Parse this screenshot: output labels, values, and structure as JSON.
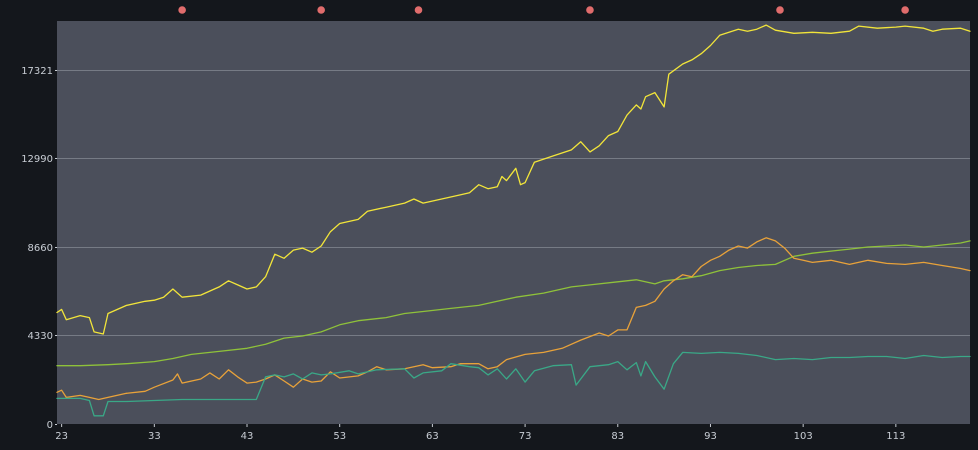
{
  "colors": {
    "background": "#14171c",
    "plot_background": "#4b4f5b",
    "marker": "#e06c6c",
    "tick": "#c8cdd4"
  },
  "chart_data": {
    "type": "line",
    "title": "",
    "xlabel": "",
    "ylabel": "",
    "xlim": [
      22.5,
      121
    ],
    "ylim": [
      0,
      19700
    ],
    "grid": "horizontal",
    "legend": "none",
    "x_ticks": [
      23,
      33,
      43,
      53,
      63,
      73,
      83,
      93,
      103,
      113
    ],
    "x_tick_labels": [
      "23",
      "33",
      "43",
      "53",
      "63",
      "73",
      "83",
      "93",
      "103",
      "113"
    ],
    "y_ticks": [
      0,
      4330,
      8660,
      12990,
      17321
    ],
    "y_tick_labels": [
      "0",
      "4330",
      "8660",
      "12990",
      "17321"
    ],
    "top_markers_x": [
      36,
      51,
      61.5,
      80,
      100.5,
      114
    ],
    "series": [
      {
        "color": "#f2e53a",
        "points": [
          [
            22.5,
            5450
          ],
          [
            23,
            5600
          ],
          [
            23.5,
            5100
          ],
          [
            25,
            5300
          ],
          [
            26,
            5200
          ],
          [
            26.5,
            4500
          ],
          [
            27.5,
            4400
          ],
          [
            28,
            5400
          ],
          [
            30,
            5800
          ],
          [
            32,
            6000
          ],
          [
            33,
            6050
          ],
          [
            34,
            6200
          ],
          [
            35,
            6600
          ],
          [
            36,
            6200
          ],
          [
            38,
            6300
          ],
          [
            40,
            6700
          ],
          [
            41,
            7000
          ],
          [
            42,
            6800
          ],
          [
            43,
            6600
          ],
          [
            44,
            6700
          ],
          [
            45,
            7200
          ],
          [
            46,
            8300
          ],
          [
            47,
            8100
          ],
          [
            48,
            8500
          ],
          [
            49,
            8600
          ],
          [
            50,
            8400
          ],
          [
            51,
            8700
          ],
          [
            52,
            9400
          ],
          [
            53,
            9800
          ],
          [
            55,
            10000
          ],
          [
            56,
            10400
          ],
          [
            58,
            10600
          ],
          [
            60,
            10800
          ],
          [
            61,
            11000
          ],
          [
            62,
            10800
          ],
          [
            64,
            11000
          ],
          [
            66,
            11200
          ],
          [
            67,
            11300
          ],
          [
            68,
            11700
          ],
          [
            69,
            11500
          ],
          [
            70,
            11600
          ],
          [
            70.5,
            12100
          ],
          [
            71,
            11900
          ],
          [
            72,
            12500
          ],
          [
            72.5,
            11700
          ],
          [
            73,
            11800
          ],
          [
            74,
            12800
          ],
          [
            76,
            13100
          ],
          [
            78,
            13400
          ],
          [
            79,
            13800
          ],
          [
            80,
            13300
          ],
          [
            81,
            13600
          ],
          [
            82,
            14100
          ],
          [
            83,
            14300
          ],
          [
            84,
            15100
          ],
          [
            85,
            15600
          ],
          [
            85.5,
            15400
          ],
          [
            86,
            16000
          ],
          [
            87,
            16200
          ],
          [
            88,
            15500
          ],
          [
            88.5,
            17100
          ],
          [
            90,
            17600
          ],
          [
            91,
            17800
          ],
          [
            92,
            18100
          ],
          [
            93,
            18500
          ],
          [
            94,
            19000
          ],
          [
            96,
            19300
          ],
          [
            97,
            19200
          ],
          [
            98,
            19300
          ],
          [
            99,
            19500
          ],
          [
            100,
            19250
          ],
          [
            102,
            19100
          ],
          [
            104,
            19150
          ],
          [
            106,
            19100
          ],
          [
            108,
            19200
          ],
          [
            109,
            19450
          ],
          [
            111,
            19350
          ],
          [
            113,
            19400
          ],
          [
            114,
            19450
          ],
          [
            116,
            19350
          ],
          [
            117,
            19200
          ],
          [
            118,
            19300
          ],
          [
            120,
            19350
          ],
          [
            121,
            19200
          ]
        ]
      },
      {
        "color": "#8fc23a",
        "points": [
          [
            22.5,
            2850
          ],
          [
            25,
            2850
          ],
          [
            28,
            2900
          ],
          [
            30,
            2950
          ],
          [
            33,
            3050
          ],
          [
            35,
            3200
          ],
          [
            37,
            3400
          ],
          [
            40,
            3550
          ],
          [
            43,
            3700
          ],
          [
            45,
            3900
          ],
          [
            47,
            4200
          ],
          [
            49,
            4300
          ],
          [
            51,
            4500
          ],
          [
            53,
            4850
          ],
          [
            55,
            5050
          ],
          [
            58,
            5200
          ],
          [
            60,
            5400
          ],
          [
            62,
            5500
          ],
          [
            65,
            5650
          ],
          [
            68,
            5800
          ],
          [
            70,
            6000
          ],
          [
            72,
            6200
          ],
          [
            75,
            6400
          ],
          [
            78,
            6700
          ],
          [
            80,
            6800
          ],
          [
            83,
            6950
          ],
          [
            85,
            7050
          ],
          [
            87,
            6850
          ],
          [
            88,
            7000
          ],
          [
            90,
            7100
          ],
          [
            92,
            7250
          ],
          [
            94,
            7500
          ],
          [
            96,
            7650
          ],
          [
            98,
            7750
          ],
          [
            100,
            7800
          ],
          [
            102,
            8200
          ],
          [
            104,
            8350
          ],
          [
            106,
            8450
          ],
          [
            108,
            8550
          ],
          [
            110,
            8650
          ],
          [
            112,
            8700
          ],
          [
            114,
            8750
          ],
          [
            116,
            8650
          ],
          [
            118,
            8750
          ],
          [
            120,
            8850
          ],
          [
            121,
            8950
          ]
        ]
      },
      {
        "color": "#e8a23a",
        "points": [
          [
            22.5,
            1550
          ],
          [
            23,
            1650
          ],
          [
            23.5,
            1300
          ],
          [
            25,
            1400
          ],
          [
            26,
            1300
          ],
          [
            27,
            1200
          ],
          [
            28,
            1300
          ],
          [
            30,
            1500
          ],
          [
            32,
            1600
          ],
          [
            33,
            1800
          ],
          [
            35,
            2150
          ],
          [
            35.5,
            2450
          ],
          [
            36,
            2000
          ],
          [
            38,
            2200
          ],
          [
            39,
            2500
          ],
          [
            40,
            2200
          ],
          [
            41,
            2650
          ],
          [
            42,
            2300
          ],
          [
            43,
            2000
          ],
          [
            44,
            2050
          ],
          [
            45,
            2200
          ],
          [
            46,
            2400
          ],
          [
            47,
            2100
          ],
          [
            48,
            1800
          ],
          [
            49,
            2200
          ],
          [
            50,
            2050
          ],
          [
            51,
            2100
          ],
          [
            52,
            2550
          ],
          [
            53,
            2250
          ],
          [
            55,
            2350
          ],
          [
            56,
            2550
          ],
          [
            57,
            2800
          ],
          [
            58,
            2650
          ],
          [
            60,
            2700
          ],
          [
            61,
            2800
          ],
          [
            62,
            2900
          ],
          [
            63,
            2750
          ],
          [
            65,
            2800
          ],
          [
            66,
            2950
          ],
          [
            68,
            2950
          ],
          [
            69,
            2700
          ],
          [
            70,
            2800
          ],
          [
            71,
            3150
          ],
          [
            73,
            3400
          ],
          [
            75,
            3500
          ],
          [
            77,
            3700
          ],
          [
            79,
            4100
          ],
          [
            81,
            4450
          ],
          [
            82,
            4300
          ],
          [
            83,
            4600
          ],
          [
            84,
            4600
          ],
          [
            85,
            5700
          ],
          [
            86,
            5800
          ],
          [
            87,
            6000
          ],
          [
            88,
            6600
          ],
          [
            89,
            7000
          ],
          [
            90,
            7300
          ],
          [
            91,
            7200
          ],
          [
            92,
            7700
          ],
          [
            93,
            8000
          ],
          [
            94,
            8200
          ],
          [
            95,
            8500
          ],
          [
            96,
            8700
          ],
          [
            97,
            8600
          ],
          [
            98,
            8900
          ],
          [
            99,
            9100
          ],
          [
            100,
            8950
          ],
          [
            101,
            8600
          ],
          [
            102,
            8100
          ],
          [
            103,
            8000
          ],
          [
            104,
            7900
          ],
          [
            106,
            8000
          ],
          [
            108,
            7800
          ],
          [
            110,
            8000
          ],
          [
            112,
            7850
          ],
          [
            114,
            7800
          ],
          [
            116,
            7900
          ],
          [
            118,
            7750
          ],
          [
            120,
            7600
          ],
          [
            121,
            7500
          ]
        ]
      },
      {
        "color": "#3aa887",
        "points": [
          [
            22.5,
            1250
          ],
          [
            25,
            1250
          ],
          [
            26,
            1150
          ],
          [
            26.5,
            400
          ],
          [
            27.5,
            400
          ],
          [
            28,
            1100
          ],
          [
            30,
            1100
          ],
          [
            33,
            1150
          ],
          [
            36,
            1200
          ],
          [
            39,
            1200
          ],
          [
            42,
            1200
          ],
          [
            44,
            1200
          ],
          [
            45,
            2300
          ],
          [
            46,
            2400
          ],
          [
            47,
            2300
          ],
          [
            48,
            2450
          ],
          [
            49,
            2200
          ],
          [
            50,
            2500
          ],
          [
            51,
            2400
          ],
          [
            52,
            2450
          ],
          [
            54,
            2600
          ],
          [
            55,
            2450
          ],
          [
            57,
            2650
          ],
          [
            60,
            2700
          ],
          [
            61,
            2250
          ],
          [
            62,
            2500
          ],
          [
            64,
            2600
          ],
          [
            65,
            2950
          ],
          [
            67,
            2800
          ],
          [
            68,
            2750
          ],
          [
            69,
            2400
          ],
          [
            70,
            2700
          ],
          [
            71,
            2200
          ],
          [
            72,
            2700
          ],
          [
            73,
            2050
          ],
          [
            74,
            2600
          ],
          [
            76,
            2850
          ],
          [
            78,
            2900
          ],
          [
            78.5,
            1900
          ],
          [
            80,
            2800
          ],
          [
            82,
            2900
          ],
          [
            83,
            3050
          ],
          [
            84,
            2650
          ],
          [
            85,
            3000
          ],
          [
            85.5,
            2350
          ],
          [
            86,
            3050
          ],
          [
            87,
            2300
          ],
          [
            88,
            1700
          ],
          [
            89,
            2950
          ],
          [
            90,
            3500
          ],
          [
            92,
            3450
          ],
          [
            94,
            3500
          ],
          [
            96,
            3450
          ],
          [
            98,
            3350
          ],
          [
            100,
            3150
          ],
          [
            102,
            3200
          ],
          [
            104,
            3150
          ],
          [
            106,
            3250
          ],
          [
            108,
            3250
          ],
          [
            110,
            3300
          ],
          [
            112,
            3300
          ],
          [
            114,
            3200
          ],
          [
            116,
            3350
          ],
          [
            118,
            3250
          ],
          [
            120,
            3300
          ],
          [
            121,
            3300
          ]
        ]
      }
    ]
  }
}
